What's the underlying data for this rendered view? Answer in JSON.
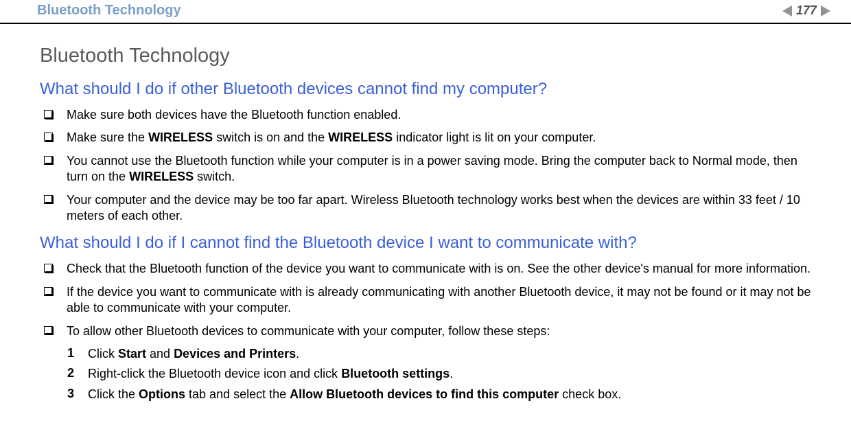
{
  "header": {
    "title": "Bluetooth Technology",
    "pageNumber": "177"
  },
  "content": {
    "mainTitle": "Bluetooth Technology",
    "sections": [
      {
        "question": "What should I do if other Bluetooth devices cannot find my computer?",
        "bullets": [
          {
            "segments": [
              {
                "t": "Make sure both devices have the Bluetooth function enabled."
              }
            ]
          },
          {
            "segments": [
              {
                "t": "Make sure the "
              },
              {
                "t": "WIRELESS",
                "b": true
              },
              {
                "t": " switch is on and the "
              },
              {
                "t": "WIRELESS",
                "b": true
              },
              {
                "t": " indicator light is lit on your computer."
              }
            ]
          },
          {
            "segments": [
              {
                "t": "You cannot use the Bluetooth function while your computer is in a power saving mode. Bring the computer back to Normal mode, then turn on the "
              },
              {
                "t": "WIRELESS",
                "b": true
              },
              {
                "t": " switch."
              }
            ]
          },
          {
            "segments": [
              {
                "t": "Your computer and the device may be too far apart. Wireless Bluetooth technology works best when the devices are within 33 feet / 10 meters of each other."
              }
            ]
          }
        ]
      },
      {
        "question": "What should I do if I cannot find the Bluetooth device I want to communicate with?",
        "bullets": [
          {
            "segments": [
              {
                "t": "Check that the Bluetooth function of the device you want to communicate with is on. See the other device's manual for more information."
              }
            ]
          },
          {
            "segments": [
              {
                "t": "If the device you want to communicate with is already communicating with another Bluetooth device, it may not be found or it may not be able to communicate with your computer."
              }
            ]
          },
          {
            "segments": [
              {
                "t": "To allow other Bluetooth devices to communicate with your computer, follow these steps:"
              }
            ],
            "steps": [
              {
                "n": "1",
                "segments": [
                  {
                    "t": "Click "
                  },
                  {
                    "t": "Start",
                    "b": true
                  },
                  {
                    "t": " and "
                  },
                  {
                    "t": "Devices and Printers",
                    "b": true
                  },
                  {
                    "t": "."
                  }
                ]
              },
              {
                "n": "2",
                "segments": [
                  {
                    "t": "Right-click the Bluetooth device icon and click "
                  },
                  {
                    "t": "Bluetooth settings",
                    "b": true
                  },
                  {
                    "t": "."
                  }
                ]
              },
              {
                "n": "3",
                "segments": [
                  {
                    "t": "Click the "
                  },
                  {
                    "t": "Options",
                    "b": true
                  },
                  {
                    "t": " tab and select the "
                  },
                  {
                    "t": "Allow Bluetooth devices to find this computer",
                    "b": true
                  },
                  {
                    "t": " check box."
                  }
                ]
              }
            ]
          }
        ]
      }
    ]
  }
}
